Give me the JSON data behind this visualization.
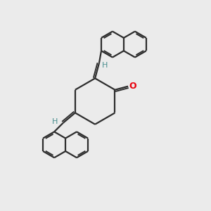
{
  "bg_color": "#ebebeb",
  "bond_color": "#2d2d2d",
  "oxygen_color": "#e8000d",
  "hydrogen_color": "#4a8f8f",
  "line_width": 1.6,
  "figsize": [
    3.0,
    3.0
  ],
  "dpi": 100,
  "xlim": [
    0,
    10
  ],
  "ylim": [
    0,
    10
  ]
}
